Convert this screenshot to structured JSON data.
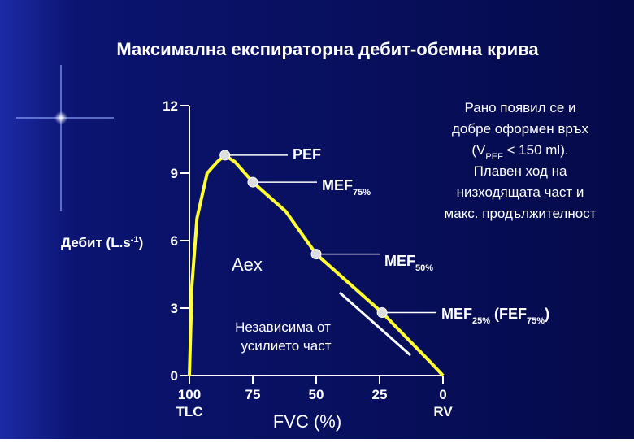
{
  "chart_data": {
    "type": "line",
    "title": "Максимална експираторна дебит-обемна крива",
    "x_label": "FVC (%)",
    "y_label": [
      "Дебит (L.s",
      "-1",
      ")"
    ],
    "xlim": [
      100,
      0
    ],
    "ylim": [
      0,
      12
    ],
    "xticks": [
      100,
      75,
      50,
      25,
      0
    ],
    "xtick_notes": [
      "TLC",
      null,
      null,
      null,
      "RV"
    ],
    "yticks": [
      0,
      3,
      6,
      9,
      12
    ],
    "series": [
      {
        "color": "#ffff33",
        "x": [
          100,
          99,
          97,
          93,
          89,
          86,
          82,
          75,
          62,
          50,
          24,
          5,
          0
        ],
        "values": [
          0,
          4,
          7,
          9,
          9.5,
          9.8,
          9.5,
          8.6,
          7.3,
          5.4,
          2.8,
          0.6,
          0
        ]
      }
    ],
    "points": [
      {
        "label": [
          "PEF"
        ],
        "x": 86,
        "y": 9.8
      },
      {
        "label": [
          "MEF",
          "75%"
        ],
        "x": 75,
        "y": 8.6
      },
      {
        "label": [
          "MEF",
          "50%"
        ],
        "x": 50,
        "y": 5.4
      },
      {
        "label": [
          "MEF",
          "25%",
          " (FEF",
          "75%",
          ")"
        ],
        "x": 24,
        "y": 2.8
      }
    ],
    "annotations": [
      "Aex",
      "Независима от",
      "усилието част"
    ],
    "note": [
      [
        "Рано появил се и"
      ],
      [
        "добре оформен връх"
      ],
      [
        "(V",
        "PEF",
        " < 150 ml)."
      ],
      [
        "Плавен ход на"
      ],
      [
        "низходящата част и"
      ],
      [
        "макс. продължителност"
      ]
    ]
  }
}
